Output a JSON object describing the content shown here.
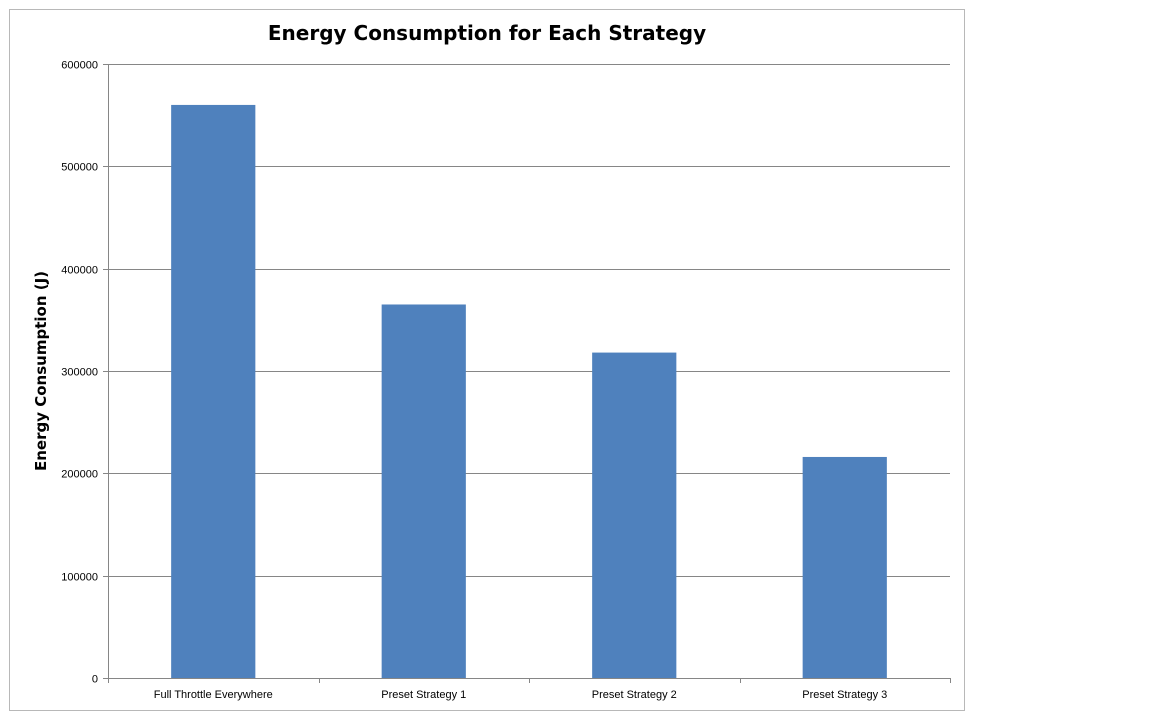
{
  "chart_data": {
    "type": "bar",
    "title": "Energy Consumption for Each Strategy",
    "xlabel": "",
    "ylabel": "Energy Consumption  (J)",
    "categories": [
      "Full Throttle Everywhere",
      "Preset Strategy 1",
      "Preset Strategy 2",
      "Preset Strategy 3"
    ],
    "values": [
      560000,
      365000,
      318000,
      216000
    ],
    "ylim": [
      0,
      600000
    ],
    "yticks": [
      "0",
      "100000",
      "200000",
      "300000",
      "400000",
      "500000",
      "600000"
    ],
    "grid": true,
    "legend": "none",
    "bar_color": "#4F81BD",
    "grid_color": "#868686"
  }
}
